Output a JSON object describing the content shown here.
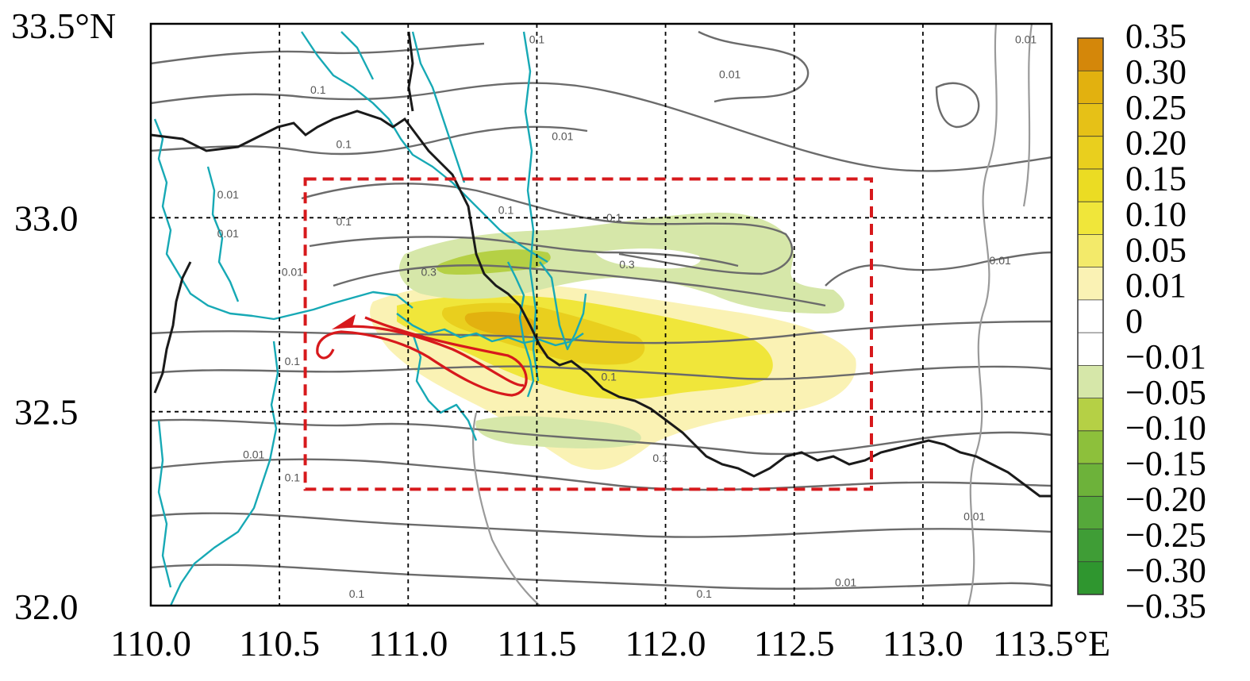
{
  "map": {
    "x_axis": {
      "ticks": [
        "110.0",
        "110.5",
        "111.0",
        "111.5",
        "112.0",
        "112.5",
        "113.0",
        "113.5°E"
      ],
      "values": [
        110.0,
        110.5,
        111.0,
        111.5,
        112.0,
        112.5,
        113.0,
        113.5
      ]
    },
    "y_axis": {
      "ticks": [
        "32.0",
        "32.5",
        "33.0",
        "33.5°N"
      ],
      "values": [
        32.0,
        32.5,
        33.0,
        33.5
      ]
    },
    "lon_range": [
      110.0,
      113.5
    ],
    "lat_range": [
      32.0,
      33.5
    ],
    "gridlines": "dashed",
    "study_box": {
      "lon": [
        110.6,
        112.8
      ],
      "lat": [
        32.3,
        33.1
      ],
      "color": "#d7191c"
    },
    "contour_labels": [
      {
        "text": "0.1",
        "lon": 111.5,
        "lat": 33.45
      },
      {
        "text": "0.1",
        "lon": 110.65,
        "lat": 33.32
      },
      {
        "text": "0.01",
        "lon": 110.3,
        "lat": 33.05
      },
      {
        "text": "0.01",
        "lon": 110.3,
        "lat": 32.95
      },
      {
        "text": "0.1",
        "lon": 110.75,
        "lat": 32.98
      },
      {
        "text": "0.1",
        "lon": 110.75,
        "lat": 33.18
      },
      {
        "text": "0.01",
        "lon": 110.55,
        "lat": 32.85
      },
      {
        "text": "0.3",
        "lon": 111.08,
        "lat": 32.85
      },
      {
        "text": "0.3",
        "lon": 111.85,
        "lat": 32.87
      },
      {
        "text": "0.1",
        "lon": 111.8,
        "lat": 32.99
      },
      {
        "text": "0.1",
        "lon": 111.38,
        "lat": 33.01
      },
      {
        "text": "0.01",
        "lon": 111.6,
        "lat": 33.2
      },
      {
        "text": "0.01",
        "lon": 112.25,
        "lat": 33.36
      },
      {
        "text": "0.01",
        "lon": 113.4,
        "lat": 33.45
      },
      {
        "text": "0.01",
        "lon": 113.3,
        "lat": 32.88
      },
      {
        "text": "0.1",
        "lon": 111.78,
        "lat": 32.58
      },
      {
        "text": "0.1",
        "lon": 111.98,
        "lat": 32.37
      },
      {
        "text": "0.1",
        "lon": 110.55,
        "lat": 32.62
      },
      {
        "text": "0.01",
        "lon": 110.4,
        "lat": 32.38
      },
      {
        "text": "0.1",
        "lon": 110.55,
        "lat": 32.32
      },
      {
        "text": "0.01",
        "lon": 113.2,
        "lat": 32.22
      },
      {
        "text": "0.01",
        "lon": 112.7,
        "lat": 32.05
      },
      {
        "text": "0.1",
        "lon": 110.8,
        "lat": 32.02
      },
      {
        "text": "0.1",
        "lon": 112.15,
        "lat": 32.02
      }
    ]
  },
  "colorbar": {
    "labels": [
      "0.35",
      "0.30",
      "0.25",
      "0.20",
      "0.15",
      "0.10",
      "0.05",
      "0.01",
      "0",
      "−0.01",
      "−0.05",
      "−0.10",
      "−0.15",
      "−0.20",
      "−0.25",
      "−0.30",
      "−0.35"
    ],
    "colors": [
      "#d4870a",
      "#e2b10f",
      "#e6c117",
      "#e9cf1e",
      "#ebdc23",
      "#f0e63a",
      "#f3ea6a",
      "#faf2b4",
      "#ffffff",
      "#ffffff",
      "#d6e7a9",
      "#b5d045",
      "#8dc03b",
      "#6db23a",
      "#55a83a",
      "#3f9d36",
      "#2f962f"
    ]
  },
  "colors": {
    "contour": "#6b6b6b",
    "contour_light": "#9a9a9a",
    "boundary": "#1a1a1a",
    "river": "#17a9b5",
    "track": "#d7191c"
  }
}
